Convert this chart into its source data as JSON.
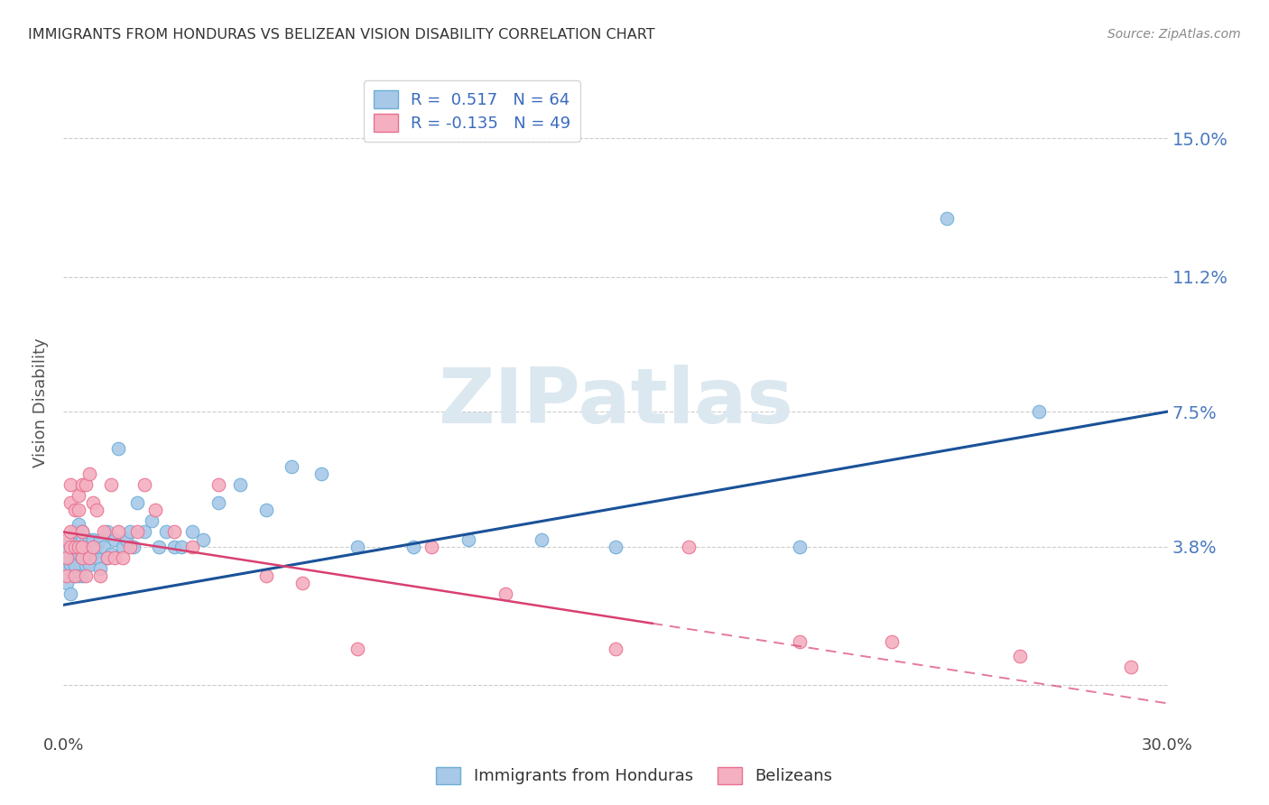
{
  "title": "IMMIGRANTS FROM HONDURAS VS BELIZEAN VISION DISABILITY CORRELATION CHART",
  "source": "Source: ZipAtlas.com",
  "ylabel": "Vision Disability",
  "xlim": [
    0.0,
    0.3
  ],
  "ylim": [
    -0.013,
    0.168
  ],
  "yticks": [
    0.0,
    0.038,
    0.075,
    0.112,
    0.15
  ],
  "ytick_labels": [
    "",
    "3.8%",
    "7.5%",
    "11.2%",
    "15.0%"
  ],
  "xtick_positions": [
    0.0,
    0.05,
    0.1,
    0.15,
    0.2,
    0.25,
    0.3
  ],
  "xtick_labels": [
    "0.0%",
    "",
    "",
    "",
    "",
    "",
    "30.0%"
  ],
  "series1_color": "#a8c8e8",
  "series2_color": "#f4b0c0",
  "series1_edge": "#6aaed6",
  "series2_edge": "#e87090",
  "trendline1_color": "#1a5298",
  "trendline2_color": "#d94070",
  "trendline2_dash": [
    6,
    3
  ],
  "watermark_text": "ZIPatlas",
  "watermark_color": "#dce8f0",
  "background_color": "#ffffff",
  "legend1_label": "R =  0.517   N = 64",
  "legend2_label": "R = -0.135   N = 49",
  "bottom_legend1": "Immigrants from Honduras",
  "bottom_legend2": "Belizeans",
  "scatter1_x": [
    0.001,
    0.001,
    0.001,
    0.002,
    0.002,
    0.002,
    0.002,
    0.003,
    0.003,
    0.003,
    0.003,
    0.003,
    0.004,
    0.004,
    0.004,
    0.004,
    0.005,
    0.005,
    0.005,
    0.005,
    0.006,
    0.006,
    0.006,
    0.007,
    0.007,
    0.007,
    0.008,
    0.008,
    0.009,
    0.009,
    0.01,
    0.01,
    0.011,
    0.012,
    0.012,
    0.013,
    0.014,
    0.015,
    0.016,
    0.017,
    0.018,
    0.019,
    0.02,
    0.022,
    0.024,
    0.026,
    0.028,
    0.03,
    0.032,
    0.035,
    0.038,
    0.042,
    0.048,
    0.055,
    0.062,
    0.07,
    0.08,
    0.095,
    0.11,
    0.13,
    0.15,
    0.2,
    0.24,
    0.265
  ],
  "scatter1_y": [
    0.032,
    0.038,
    0.028,
    0.033,
    0.035,
    0.04,
    0.025,
    0.036,
    0.03,
    0.038,
    0.042,
    0.033,
    0.036,
    0.03,
    0.038,
    0.044,
    0.035,
    0.038,
    0.03,
    0.042,
    0.038,
    0.033,
    0.04,
    0.035,
    0.04,
    0.033,
    0.036,
    0.04,
    0.035,
    0.038,
    0.032,
    0.04,
    0.038,
    0.042,
    0.035,
    0.036,
    0.04,
    0.065,
    0.038,
    0.04,
    0.042,
    0.038,
    0.05,
    0.042,
    0.045,
    0.038,
    0.042,
    0.038,
    0.038,
    0.042,
    0.04,
    0.05,
    0.055,
    0.048,
    0.06,
    0.058,
    0.038,
    0.038,
    0.04,
    0.04,
    0.038,
    0.038,
    0.128,
    0.075
  ],
  "scatter2_x": [
    0.001,
    0.001,
    0.001,
    0.002,
    0.002,
    0.002,
    0.002,
    0.003,
    0.003,
    0.003,
    0.004,
    0.004,
    0.004,
    0.005,
    0.005,
    0.005,
    0.005,
    0.006,
    0.006,
    0.007,
    0.007,
    0.008,
    0.008,
    0.009,
    0.01,
    0.011,
    0.012,
    0.013,
    0.014,
    0.015,
    0.016,
    0.018,
    0.02,
    0.022,
    0.025,
    0.03,
    0.035,
    0.042,
    0.055,
    0.065,
    0.08,
    0.1,
    0.12,
    0.15,
    0.17,
    0.2,
    0.225,
    0.26,
    0.29
  ],
  "scatter2_y": [
    0.03,
    0.035,
    0.04,
    0.038,
    0.042,
    0.05,
    0.055,
    0.048,
    0.038,
    0.03,
    0.052,
    0.038,
    0.048,
    0.055,
    0.035,
    0.042,
    0.038,
    0.055,
    0.03,
    0.058,
    0.035,
    0.05,
    0.038,
    0.048,
    0.03,
    0.042,
    0.035,
    0.055,
    0.035,
    0.042,
    0.035,
    0.038,
    0.042,
    0.055,
    0.048,
    0.042,
    0.038,
    0.055,
    0.03,
    0.028,
    0.01,
    0.038,
    0.025,
    0.01,
    0.038,
    0.012,
    0.012,
    0.008,
    0.005
  ],
  "trendline1_x0": 0.0,
  "trendline1_y0": 0.022,
  "trendline1_x1": 0.3,
  "trendline1_y1": 0.075,
  "trendline2_x0": 0.0,
  "trendline2_y0": 0.042,
  "trendline2_x1": 0.3,
  "trendline2_y1": -0.005
}
